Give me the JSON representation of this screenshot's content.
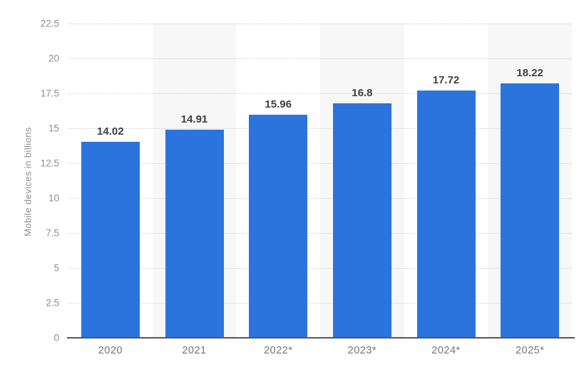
{
  "chart_data": {
    "type": "bar",
    "title": "",
    "xlabel": "",
    "ylabel": "Mobile devices in billions",
    "categories": [
      "2020",
      "2021",
      "2022*",
      "2023*",
      "2024*",
      "2025*"
    ],
    "values": [
      14.02,
      14.91,
      15.96,
      16.8,
      17.72,
      18.22
    ],
    "value_labels": [
      "14.02",
      "14.91",
      "15.96",
      "16.8",
      "17.72",
      "18.22"
    ],
    "ylim": [
      0,
      22.5
    ],
    "yticks": [
      0,
      2.5,
      5,
      7.5,
      10,
      12.5,
      15,
      17.5,
      20,
      22.5
    ],
    "ytick_labels": [
      "0",
      "2.5",
      "5",
      "7.5",
      "10",
      "12.5",
      "15",
      "17.5",
      "20",
      "22.5"
    ],
    "grid": "horizontal-dotted",
    "legend": "none",
    "stripe_pattern": "alternating vertical column bands, first column white",
    "colors": {
      "bar": "#2b74dd",
      "column_stripe": "#f7f7f7",
      "gridline": "#d2d2d2",
      "axis_line": "#54585b",
      "tick_label": "#8e8e8e",
      "axis_title": "#8e8e8e",
      "value_label": "#404040",
      "category_label": "#757575",
      "background": "#ffffff"
    }
  }
}
